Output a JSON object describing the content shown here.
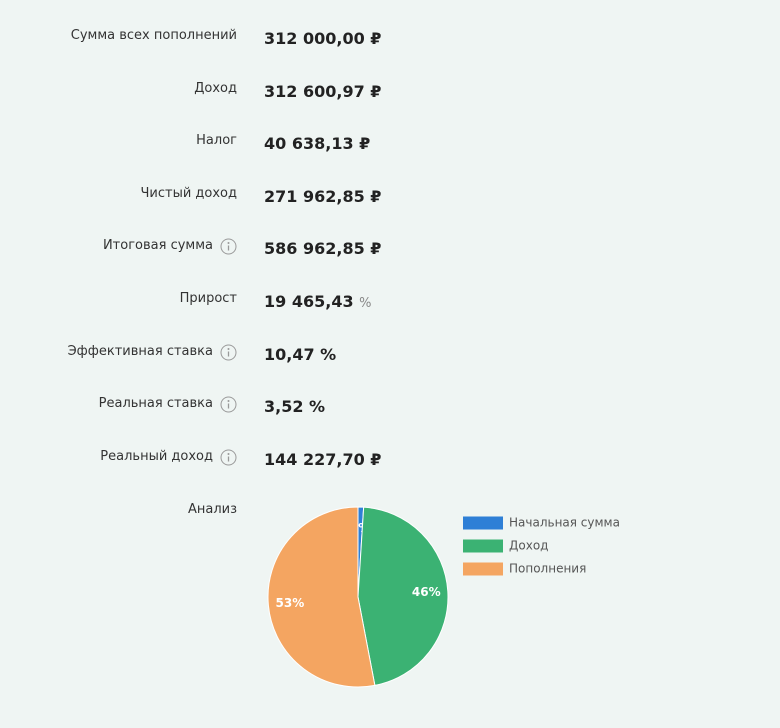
{
  "rows": [
    {
      "label": "Сумма всех пополнений",
      "value": "312 000,00 ₽"
    },
    {
      "label": "Доход",
      "value": "312 600,97 ₽"
    },
    {
      "label": "Налог",
      "value": "40 638,13 ₽"
    },
    {
      "label": "Чистый доход",
      "value": "271 962,85 ₽"
    },
    {
      "label": "Итоговая сумма",
      "value": "586 962,85 ₽"
    },
    {
      "label": "Прирост",
      "value": "19 465,43",
      "unit": "%"
    },
    {
      "label": "Эффективная ставка",
      "value": "10,47 %"
    },
    {
      "label": "Реальная ставка",
      "value": "3,52 %"
    },
    {
      "label": "Реальный доход",
      "value": "144 227,70 ₽"
    }
  ],
  "analysis_label": "Анализ",
  "chart_data": {
    "type": "pie",
    "categories": [
      "Начальная сумма",
      "Доход",
      "Пополнения"
    ],
    "values": [
      1,
      46,
      53
    ],
    "value_labels": [
      "1%",
      "46%",
      "53%"
    ],
    "colors": [
      "#2e7fd6",
      "#3bb273",
      "#f4a561"
    ]
  }
}
